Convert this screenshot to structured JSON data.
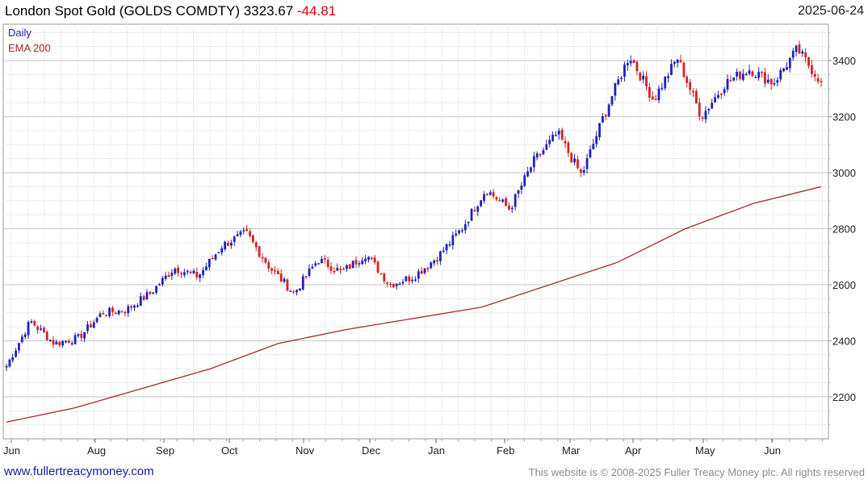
{
  "header": {
    "title": "London Spot Gold (GOLDS COMDTY) 3323.67",
    "change": "-44.81",
    "date": "2025-06-24"
  },
  "legend": {
    "daily": "Daily",
    "ema": "EMA 200"
  },
  "footer": {
    "link": "www.fullertreacymoney.com",
    "copyright": "This website is © 2008-2025 Fuller Treacy Money plc. All rights reserved"
  },
  "colors": {
    "up_candle": "#1f1fbf",
    "down_candle": "#d82020",
    "ema_line": "#a52a2a",
    "grid": "#dcdcdc",
    "change_text": "#d40000"
  },
  "chart_data": {
    "type": "candlestick",
    "title": "London Spot Gold (GOLDS COMDTY)",
    "ylim": [
      2050,
      3530
    ],
    "y_ticks": [
      2200,
      2400,
      2600,
      2800,
      3000,
      3200,
      3400
    ],
    "x_ticks": [
      "Jun",
      "Aug",
      "Sep",
      "Oct",
      "Nov",
      "Dec",
      "Jan",
      "Feb",
      "Mar",
      "Apr",
      "May",
      "Jun"
    ],
    "grid": true,
    "legend_position": "top-left",
    "series": [
      {
        "name": "Daily",
        "anchors": [
          {
            "date": "Jun",
            "close": 2310
          },
          {
            "date": "Jul",
            "close": 2470
          },
          {
            "date": "Jul",
            "close": 2390
          },
          {
            "date": "Aug",
            "close": 2410
          },
          {
            "date": "Aug",
            "close": 2500
          },
          {
            "date": "Sep",
            "close": 2510
          },
          {
            "date": "Sep",
            "close": 2570
          },
          {
            "date": "Sep",
            "close": 2660
          },
          {
            "date": "Oct",
            "close": 2630
          },
          {
            "date": "Oct",
            "close": 2740
          },
          {
            "date": "Oct",
            "close": 2785
          },
          {
            "date": "Nov",
            "close": 2660
          },
          {
            "date": "Nov",
            "close": 2570
          },
          {
            "date": "Nov",
            "close": 2690
          },
          {
            "date": "Dec",
            "close": 2645
          },
          {
            "date": "Dec",
            "close": 2710
          },
          {
            "date": "Dec",
            "close": 2600
          },
          {
            "date": "Jan",
            "close": 2630
          },
          {
            "date": "Jan",
            "close": 2700
          },
          {
            "date": "Feb",
            "close": 2800
          },
          {
            "date": "Feb",
            "close": 2940
          },
          {
            "date": "Mar",
            "close": 2870
          },
          {
            "date": "Mar",
            "close": 3040
          },
          {
            "date": "Apr",
            "close": 3140
          },
          {
            "date": "Apr",
            "close": 2990
          },
          {
            "date": "Apr",
            "close": 3220
          },
          {
            "date": "Apr",
            "close": 3420
          },
          {
            "date": "May",
            "close": 3260
          },
          {
            "date": "May",
            "close": 3410
          },
          {
            "date": "May",
            "close": 3200
          },
          {
            "date": "May",
            "close": 3320
          },
          {
            "date": "Jun",
            "close": 3370
          },
          {
            "date": "Jun",
            "close": 3320
          },
          {
            "date": "Jun",
            "close": 3440
          },
          {
            "date": "Jun",
            "close": 3323.67
          }
        ]
      },
      {
        "name": "EMA 200",
        "values": [
          2110,
          2160,
          2230,
          2300,
          2390,
          2440,
          2480,
          2520,
          2600,
          2680,
          2800,
          2890,
          2950
        ]
      }
    ]
  }
}
